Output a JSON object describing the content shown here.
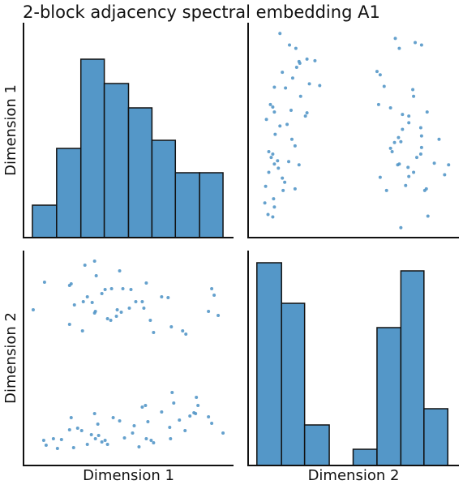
{
  "title": "2-block adjacency spectral embedding A1",
  "chart_data": [
    {
      "type": "histogram",
      "ylabel": "Dimension 1",
      "color": "#5497c8",
      "bins": [
        11,
        41,
        71,
        100,
        130,
        159,
        188,
        218,
        247
      ],
      "values": [
        4,
        11,
        22,
        19,
        16,
        12,
        8,
        8
      ],
      "xlim": [
        0,
        260
      ],
      "ylim": [
        0,
        26.5
      ]
    },
    {
      "type": "scatter",
      "color": "#5497c8",
      "xlim": [
        0,
        265
      ],
      "ylim": [
        0,
        260
      ],
      "x": [
        192,
        226,
        222,
        224,
        247,
        252,
        234,
        240,
        198,
        202,
        208,
        201,
        212,
        217,
        218,
        192,
        218,
        217,
        202,
        225,
        208,
        207,
        202,
        194,
        188,
        181,
        179,
        184,
        189,
        194,
        179,
        164,
        171,
        166,
        162,
        218,
        210,
        190,
        185,
        174,
        166,
        190,
        31,
        25,
        21,
        32,
        44,
        59,
        22,
        46,
        43,
        26,
        38,
        64,
        33,
        51,
        37,
        29,
        31,
        26,
        59,
        55,
        34,
        40,
        49,
        23,
        72,
        74,
        54,
        31,
        28,
        66,
        47,
        33,
        90,
        77,
        61,
        65,
        84,
        64,
        74,
        60,
        52,
        40,
        43,
        56,
        33,
        33
      ],
      "y": [
        12,
        26,
        57,
        59,
        76,
        88,
        90,
        119,
        63,
        74,
        79,
        85,
        97,
        101,
        109,
        116,
        123,
        133,
        139,
        152,
        171,
        179,
        147,
        149,
        88,
        104,
        108,
        115,
        121,
        131,
        157,
        161,
        183,
        197,
        201,
        233,
        236,
        229,
        241,
        57,
        73,
        89,
        25,
        28,
        42,
        47,
        57,
        59,
        62,
        67,
        72,
        79,
        84,
        88,
        89,
        92,
        93,
        97,
        101,
        104,
        111,
        119,
        125,
        135,
        137,
        143,
        147,
        151,
        154,
        158,
        161,
        171,
        181,
        182,
        184,
        186,
        206,
        211,
        214,
        213,
        216,
        229,
        233,
        247,
        200,
        193,
        152,
        37
      ]
    },
    {
      "type": "scatter",
      "xlabel": "Dimension 1",
      "ylabel": "Dimension 2",
      "color": "#5497c8",
      "xlim": [
        0,
        260
      ],
      "ylim": [
        0,
        265
      ],
      "x": [
        12,
        26,
        57,
        59,
        76,
        88,
        90,
        119,
        63,
        74,
        79,
        85,
        97,
        101,
        109,
        116,
        123,
        133,
        139,
        152,
        171,
        179,
        147,
        149,
        88,
        104,
        108,
        115,
        121,
        131,
        157,
        161,
        183,
        197,
        201,
        233,
        236,
        229,
        241,
        57,
        73,
        89,
        25,
        28,
        42,
        47,
        57,
        59,
        62,
        67,
        72,
        79,
        84,
        88,
        89,
        92,
        93,
        97,
        101,
        104,
        111,
        119,
        125,
        135,
        137,
        143,
        147,
        151,
        154,
        158,
        161,
        171,
        181,
        182,
        184,
        186,
        206,
        211,
        214,
        213,
        216,
        229,
        233,
        247,
        200,
        193,
        152,
        37
      ],
      "y": [
        192,
        226,
        222,
        224,
        247,
        252,
        234,
        240,
        198,
        202,
        208,
        201,
        212,
        217,
        218,
        192,
        218,
        217,
        202,
        225,
        208,
        207,
        202,
        194,
        188,
        181,
        179,
        184,
        189,
        194,
        179,
        164,
        171,
        166,
        162,
        218,
        210,
        190,
        185,
        174,
        166,
        190,
        31,
        25,
        21,
        32,
        44,
        59,
        22,
        46,
        43,
        26,
        38,
        64,
        33,
        51,
        37,
        29,
        31,
        26,
        59,
        55,
        34,
        40,
        49,
        23,
        72,
        74,
        54,
        31,
        28,
        66,
        47,
        33,
        90,
        77,
        61,
        65,
        84,
        64,
        74,
        60,
        52,
        40,
        43,
        56,
        33,
        33
      ]
    },
    {
      "type": "histogram",
      "xlabel": "Dimension 2",
      "color": "#5497c8",
      "bins": [
        11,
        42,
        71,
        102,
        132,
        162,
        192,
        221,
        251
      ],
      "values": [
        25,
        20,
        5,
        0,
        2,
        17,
        24,
        7
      ],
      "xlim": [
        0,
        265
      ],
      "ylim": [
        0,
        26.5
      ]
    }
  ]
}
